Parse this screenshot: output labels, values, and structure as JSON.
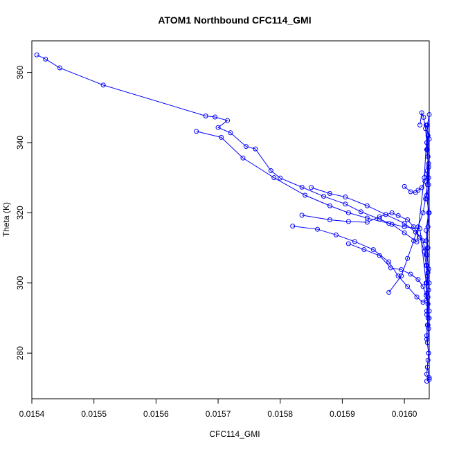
{
  "chart_data": {
    "type": "line",
    "title": "ATOM1 Northbound CFC114_GMI",
    "xlabel": "CFC114_GMI",
    "ylabel": "Theta (K)",
    "xlim": [
      0.0154,
      0.01604
    ],
    "ylim": [
      267,
      369
    ],
    "xticks": [
      "0.0154",
      "0.0155",
      "0.0156",
      "0.0157",
      "0.0158",
      "0.0159",
      "0.0160"
    ],
    "yticks": [
      "280",
      "300",
      "320",
      "340",
      "360"
    ],
    "grid": false,
    "legend": "none",
    "color": "#0000ff",
    "marker": "open-circle",
    "series": [
      {
        "x": [
          0.015408,
          0.015422,
          0.015445,
          0.015515,
          0.01568,
          0.015695,
          0.015715,
          0.0157,
          0.01572,
          0.015745,
          0.01576,
          0.015785,
          0.0158,
          0.015835,
          0.01587,
          0.015905,
          0.01593,
          0.01596,
          0.01598,
          0.016,
          0.01602,
          0.016032,
          0.016037,
          0.01604,
          0.016038,
          0.016036,
          0.016039,
          0.016035,
          0.016038,
          0.016036,
          0.01604
        ],
        "y": [
          365.0,
          363.8,
          361.3,
          356.4,
          347.6,
          347.3,
          346.3,
          344.3,
          342.8,
          338.9,
          338.2,
          332.0,
          329.9,
          327.3,
          324.7,
          322.5,
          320.3,
          318.2,
          316.7,
          314.3,
          311.7,
          330.0,
          345.0,
          348.0,
          336.0,
          325.0,
          320.0,
          315.0,
          310.0,
          305.0,
          300.0
        ]
      },
      {
        "x": [
          0.015665,
          0.015705,
          0.01574,
          0.01579,
          0.01584,
          0.01588,
          0.01591,
          0.01594,
          0.015975,
          0.016,
          0.016025,
          0.016035,
          0.016038,
          0.016036,
          0.016039,
          0.016037,
          0.01604,
          0.016036
        ],
        "y": [
          343.2,
          341.5,
          335.6,
          330.0,
          325.0,
          322.0,
          320.0,
          318.5,
          317.0,
          316.0,
          315.5,
          300.0,
          290.0,
          285.0,
          280.0,
          276.0,
          273.0,
          272.0
        ]
      },
      {
        "x": [
          0.01582,
          0.01586,
          0.01589,
          0.01592,
          0.01595,
          0.015975,
          0.01599,
          0.016005,
          0.01602,
          0.01603,
          0.016035,
          0.016037,
          0.016039,
          0.016036
        ],
        "y": [
          316.2,
          315.3,
          313.7,
          311.8,
          309.5,
          306.0,
          302.0,
          299.0,
          296.0,
          294.5,
          295.0,
          310.0,
          330.0,
          345.0
        ]
      },
      {
        "x": [
          0.015835,
          0.01588,
          0.01591,
          0.01594,
          0.01596,
          0.01598,
          0.01599,
          0.016005,
          0.016015,
          0.016025,
          0.016032,
          0.016035,
          0.016037,
          0.016039,
          0.016036,
          0.016038
        ],
        "y": [
          319.3,
          318.0,
          317.5,
          317.3,
          318.9,
          320.0,
          319.2,
          318.0,
          316.0,
          313.0,
          309.0,
          305.0,
          302.0,
          298.0,
          292.0,
          288.0
        ]
      },
      {
        "x": [
          0.01585,
          0.01588,
          0.015905,
          0.01594,
          0.01597,
          0.016,
          0.016018,
          0.01603,
          0.016035,
          0.016038,
          0.016036,
          0.01604,
          0.016037
        ],
        "y": [
          327.2,
          325.5,
          324.5,
          322.0,
          319.5,
          317.0,
          314.5,
          312.0,
          308.0,
          303.0,
          297.0,
          290.0,
          283.0
        ]
      },
      {
        "x": [
          0.01591,
          0.015935,
          0.01596,
          0.015978,
          0.015995,
          0.01601,
          0.016022,
          0.01603,
          0.016035,
          0.016038,
          0.016036,
          0.016039
        ],
        "y": [
          311.2,
          309.5,
          307.8,
          304.3,
          303.8,
          302.5,
          301.0,
          299.0,
          296.5,
          294.0,
          291.0,
          287.0
        ]
      },
      {
        "x": [
          0.015975,
          0.015995,
          0.016005,
          0.016015,
          0.016022,
          0.01603,
          0.016034,
          0.016037,
          0.016039,
          0.016036,
          0.016038
        ],
        "y": [
          297.3,
          302.0,
          307.0,
          312.0,
          316.0,
          320.0,
          324.0,
          328.0,
          333.0,
          338.0,
          342.0
        ]
      },
      {
        "x": [
          0.016,
          0.01601,
          0.016018,
          0.016022,
          0.016028,
          0.016033,
          0.016036,
          0.016039,
          0.016037,
          0.01604,
          0.016035
        ],
        "y": [
          327.5,
          326.0,
          325.8,
          326.4,
          327.2,
          329.0,
          331.0,
          334.0,
          338.0,
          341.0,
          345.0
        ]
      },
      {
        "x": [
          0.016025,
          0.016028,
          0.016031,
          0.016034,
          0.016036,
          0.016038,
          0.016037,
          0.016039,
          0.016036,
          0.01604,
          0.016038,
          0.016035,
          0.016037,
          0.016039,
          0.016036,
          0.016038,
          0.01604,
          0.016037,
          0.016036,
          0.016039,
          0.016038,
          0.016037,
          0.016036,
          0.01604
        ],
        "y": [
          345.0,
          348.5,
          347.2,
          344.0,
          340.0,
          336.0,
          332.0,
          328.0,
          324.0,
          320.0,
          316.0,
          312.0,
          308.0,
          304.0,
          300.0,
          296.0,
          292.0,
          288.0,
          284.0,
          280.0,
          278.0,
          276.0,
          274.0,
          272.5
        ]
      }
    ]
  }
}
